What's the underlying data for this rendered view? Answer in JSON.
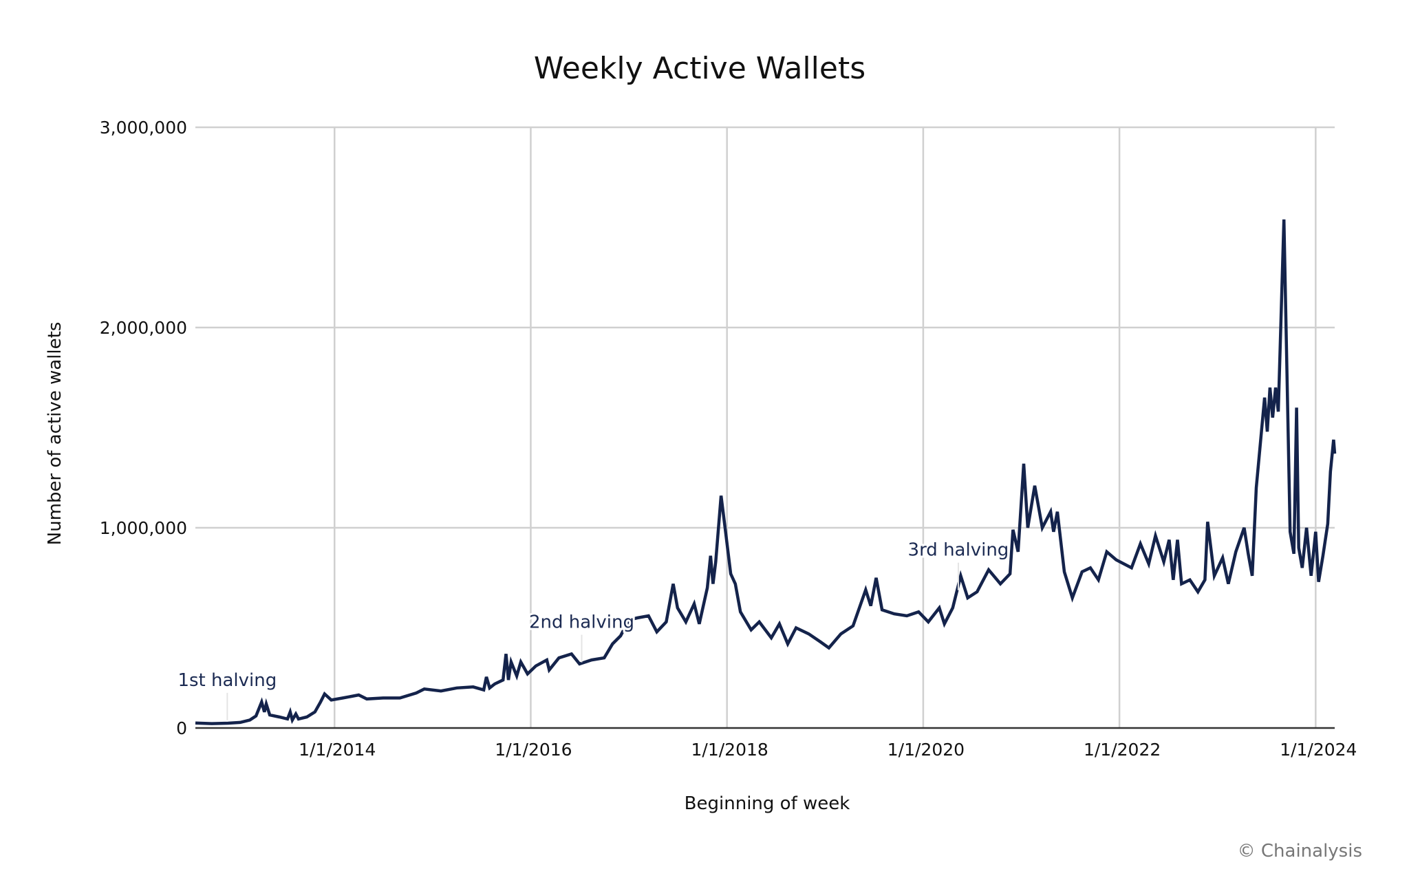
{
  "chart_data": {
    "type": "line",
    "title": "Weekly Active Wallets",
    "xlabel": "Beginning of week",
    "ylabel": "Number of active wallets",
    "xlim": [
      "2012-08-01",
      "2024-03-12"
    ],
    "ylim": [
      0,
      3000000
    ],
    "grid": true,
    "legend": "none",
    "line_color": "#14234b",
    "y_ticks": [
      {
        "value": 0,
        "label": "0"
      },
      {
        "value": 1000000,
        "label": "1,000,000"
      },
      {
        "value": 2000000,
        "label": "2,000,000"
      },
      {
        "value": 3000000,
        "label": "3,000,000"
      }
    ],
    "x_ticks": [
      {
        "value": "2014-01-01",
        "label": "1/1/2014"
      },
      {
        "value": "2016-01-01",
        "label": "1/1/2016"
      },
      {
        "value": "2018-01-01",
        "label": "1/1/2018"
      },
      {
        "value": "2020-01-01",
        "label": "1/1/2020"
      },
      {
        "value": "2022-01-01",
        "label": "1/1/2022"
      },
      {
        "value": "2024-01-01",
        "label": "1/1/2024"
      }
    ],
    "annotations": [
      {
        "date": "2012-11-28",
        "label": "1st halving"
      },
      {
        "date": "2016-07-09",
        "label": "2nd halving"
      },
      {
        "date": "2020-05-11",
        "label": "3rd halving"
      }
    ],
    "series": [
      {
        "points": [
          [
            "2012-08-01",
            25000
          ],
          [
            "2012-10-01",
            22000
          ],
          [
            "2012-12-01",
            24000
          ],
          [
            "2013-01-15",
            28000
          ],
          [
            "2013-02-20",
            40000
          ],
          [
            "2013-03-15",
            60000
          ],
          [
            "2013-04-05",
            130000
          ],
          [
            "2013-04-15",
            80000
          ],
          [
            "2013-04-22",
            120000
          ],
          [
            "2013-05-05",
            65000
          ],
          [
            "2013-06-10",
            55000
          ],
          [
            "2013-07-10",
            45000
          ],
          [
            "2013-07-20",
            80000
          ],
          [
            "2013-07-28",
            40000
          ],
          [
            "2013-08-10",
            70000
          ],
          [
            "2013-08-20",
            45000
          ],
          [
            "2013-09-20",
            55000
          ],
          [
            "2013-10-20",
            80000
          ],
          [
            "2013-11-10",
            130000
          ],
          [
            "2013-11-25",
            170000
          ],
          [
            "2013-12-20",
            140000
          ],
          [
            "2014-02-01",
            150000
          ],
          [
            "2014-04-01",
            165000
          ],
          [
            "2014-05-01",
            145000
          ],
          [
            "2014-07-01",
            150000
          ],
          [
            "2014-09-01",
            150000
          ],
          [
            "2014-11-01",
            175000
          ],
          [
            "2014-12-01",
            195000
          ],
          [
            "2015-02-01",
            185000
          ],
          [
            "2015-04-01",
            200000
          ],
          [
            "2015-06-01",
            205000
          ],
          [
            "2015-07-10",
            190000
          ],
          [
            "2015-07-20",
            255000
          ],
          [
            "2015-08-01",
            200000
          ],
          [
            "2015-08-20",
            220000
          ],
          [
            "2015-09-20",
            240000
          ],
          [
            "2015-10-01",
            370000
          ],
          [
            "2015-10-10",
            240000
          ],
          [
            "2015-10-20",
            330000
          ],
          [
            "2015-11-10",
            260000
          ],
          [
            "2015-11-25",
            330000
          ],
          [
            "2015-12-20",
            270000
          ],
          [
            "2016-01-20",
            310000
          ],
          [
            "2016-03-01",
            340000
          ],
          [
            "2016-03-10",
            290000
          ],
          [
            "2016-04-15",
            350000
          ],
          [
            "2016-06-01",
            370000
          ],
          [
            "2016-07-01",
            320000
          ],
          [
            "2016-08-15",
            340000
          ],
          [
            "2016-10-01",
            350000
          ],
          [
            "2016-11-01",
            420000
          ],
          [
            "2016-12-01",
            460000
          ],
          [
            "2017-01-01",
            540000
          ],
          [
            "2017-02-01",
            550000
          ],
          [
            "2017-03-15",
            560000
          ],
          [
            "2017-04-15",
            480000
          ],
          [
            "2017-05-20",
            530000
          ],
          [
            "2017-06-15",
            720000
          ],
          [
            "2017-07-01",
            600000
          ],
          [
            "2017-08-01",
            530000
          ],
          [
            "2017-09-01",
            620000
          ],
          [
            "2017-09-20",
            520000
          ],
          [
            "2017-10-20",
            700000
          ],
          [
            "2017-11-01",
            860000
          ],
          [
            "2017-11-10",
            720000
          ],
          [
            "2017-11-20",
            830000
          ],
          [
            "2017-12-10",
            1160000
          ],
          [
            "2017-12-25",
            1000000
          ],
          [
            "2018-01-15",
            770000
          ],
          [
            "2018-02-01",
            720000
          ],
          [
            "2018-02-20",
            580000
          ],
          [
            "2018-04-01",
            490000
          ],
          [
            "2018-05-01",
            530000
          ],
          [
            "2018-06-15",
            450000
          ],
          [
            "2018-07-15",
            520000
          ],
          [
            "2018-08-15",
            420000
          ],
          [
            "2018-09-15",
            500000
          ],
          [
            "2018-11-01",
            470000
          ],
          [
            "2018-12-15",
            430000
          ],
          [
            "2019-01-15",
            400000
          ],
          [
            "2019-03-01",
            470000
          ],
          [
            "2019-04-15",
            510000
          ],
          [
            "2019-06-01",
            690000
          ],
          [
            "2019-06-20",
            610000
          ],
          [
            "2019-07-10",
            750000
          ],
          [
            "2019-08-01",
            590000
          ],
          [
            "2019-09-15",
            570000
          ],
          [
            "2019-11-01",
            560000
          ],
          [
            "2019-12-15",
            580000
          ],
          [
            "2020-01-20",
            530000
          ],
          [
            "2020-03-01",
            600000
          ],
          [
            "2020-03-20",
            520000
          ],
          [
            "2020-04-20",
            600000
          ],
          [
            "2020-05-20",
            760000
          ],
          [
            "2020-06-15",
            650000
          ],
          [
            "2020-07-20",
            680000
          ],
          [
            "2020-09-01",
            790000
          ],
          [
            "2020-10-15",
            720000
          ],
          [
            "2020-11-20",
            770000
          ],
          [
            "2020-12-01",
            990000
          ],
          [
            "2020-12-20",
            880000
          ],
          [
            "2021-01-10",
            1320000
          ],
          [
            "2021-01-25",
            1000000
          ],
          [
            "2021-02-20",
            1210000
          ],
          [
            "2021-03-20",
            1000000
          ],
          [
            "2021-04-20",
            1080000
          ],
          [
            "2021-05-01",
            980000
          ],
          [
            "2021-05-15",
            1080000
          ],
          [
            "2021-06-10",
            780000
          ],
          [
            "2021-07-10",
            650000
          ],
          [
            "2021-08-15",
            780000
          ],
          [
            "2021-09-15",
            800000
          ],
          [
            "2021-10-15",
            740000
          ],
          [
            "2021-11-15",
            880000
          ],
          [
            "2021-12-20",
            840000
          ],
          [
            "2022-02-15",
            800000
          ],
          [
            "2022-03-20",
            920000
          ],
          [
            "2022-04-20",
            820000
          ],
          [
            "2022-05-15",
            960000
          ],
          [
            "2022-06-15",
            830000
          ],
          [
            "2022-07-05",
            940000
          ],
          [
            "2022-07-20",
            740000
          ],
          [
            "2022-08-05",
            940000
          ],
          [
            "2022-08-20",
            720000
          ],
          [
            "2022-09-20",
            740000
          ],
          [
            "2022-10-20",
            680000
          ],
          [
            "2022-11-15",
            740000
          ],
          [
            "2022-11-25",
            1030000
          ],
          [
            "2022-12-20",
            760000
          ],
          [
            "2023-01-20",
            850000
          ],
          [
            "2023-02-10",
            720000
          ],
          [
            "2023-03-10",
            880000
          ],
          [
            "2023-04-10",
            1000000
          ],
          [
            "2023-04-25",
            870000
          ],
          [
            "2023-05-10",
            760000
          ],
          [
            "2023-05-25",
            1200000
          ],
          [
            "2023-06-25",
            1650000
          ],
          [
            "2023-07-05",
            1480000
          ],
          [
            "2023-07-15",
            1700000
          ],
          [
            "2023-07-25",
            1550000
          ],
          [
            "2023-08-05",
            1700000
          ],
          [
            "2023-08-15",
            1580000
          ],
          [
            "2023-09-05",
            2540000
          ],
          [
            "2023-09-28",
            980000
          ],
          [
            "2023-10-12",
            870000
          ],
          [
            "2023-10-22",
            1600000
          ],
          [
            "2023-10-30",
            900000
          ],
          [
            "2023-11-12",
            800000
          ],
          [
            "2023-11-28",
            1000000
          ],
          [
            "2023-12-15",
            760000
          ],
          [
            "2024-01-01",
            980000
          ],
          [
            "2024-01-12",
            730000
          ],
          [
            "2024-01-28",
            860000
          ],
          [
            "2024-02-15",
            1020000
          ],
          [
            "2024-02-25",
            1280000
          ],
          [
            "2024-03-08",
            1440000
          ],
          [
            "2024-03-12",
            1370000
          ]
        ]
      }
    ]
  },
  "footer": {
    "credit": "© Chainalysis"
  }
}
